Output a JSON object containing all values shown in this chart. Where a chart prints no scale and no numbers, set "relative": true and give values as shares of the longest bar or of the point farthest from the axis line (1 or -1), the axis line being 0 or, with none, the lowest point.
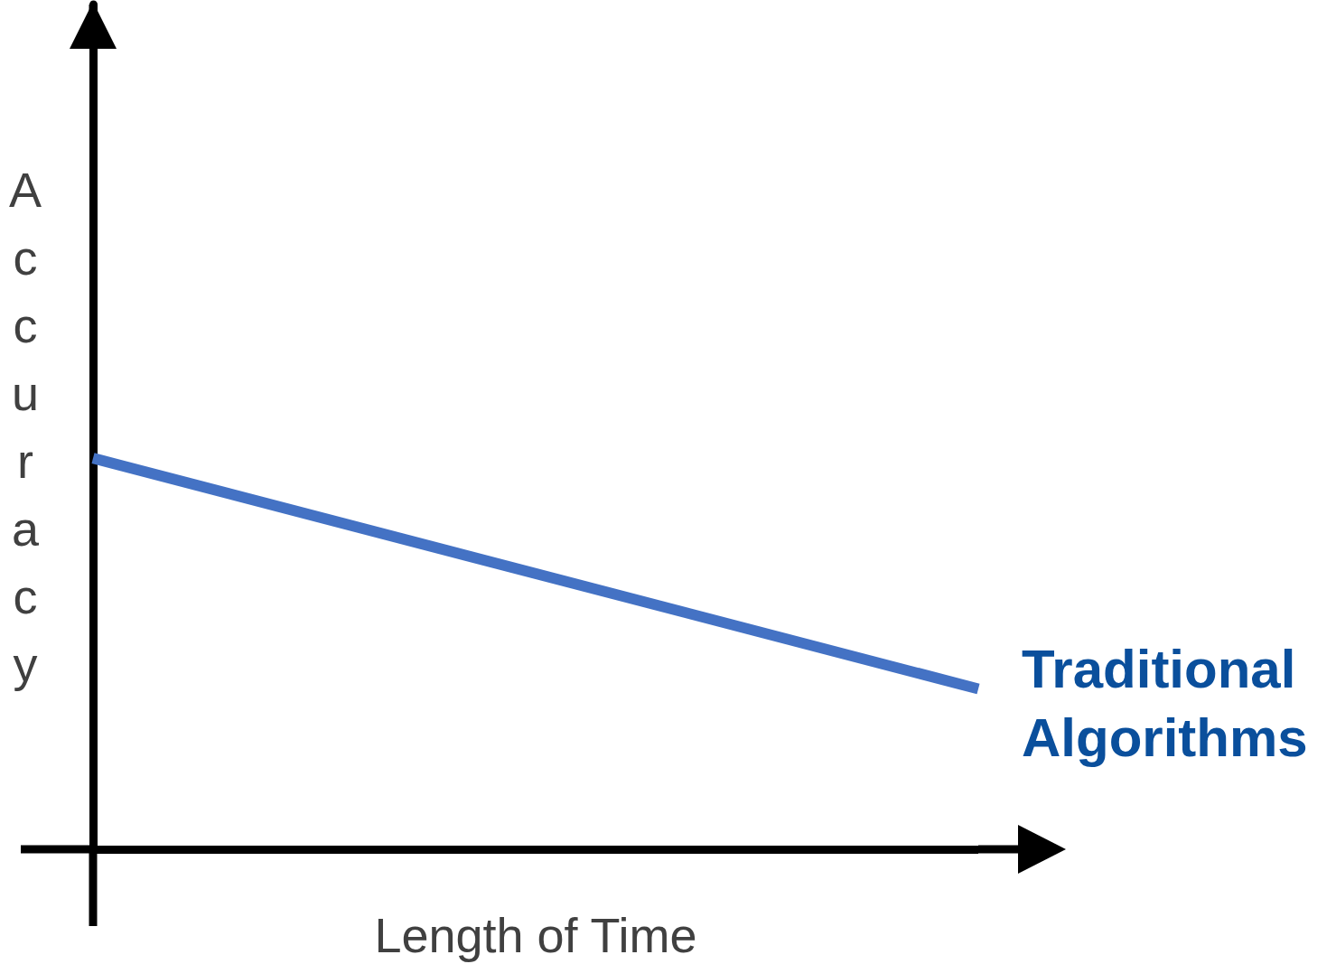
{
  "chart_data": {
    "type": "line",
    "xlabel": "Length of Time",
    "ylabel": "Accuracy",
    "categories": [
      null,
      null
    ],
    "relative": true,
    "legend": false,
    "ref_lines": [
      {
        "axis": "y",
        "value": 0,
        "color": "#000000",
        "line_style": "solid"
      }
    ],
    "marker": "none",
    "line_style": "solid",
    "series": [
      {
        "name": "Traditional Algorithms",
        "color": "#4472c4",
        "values": [
          1,
          0.41
        ]
      }
    ]
  }
}
